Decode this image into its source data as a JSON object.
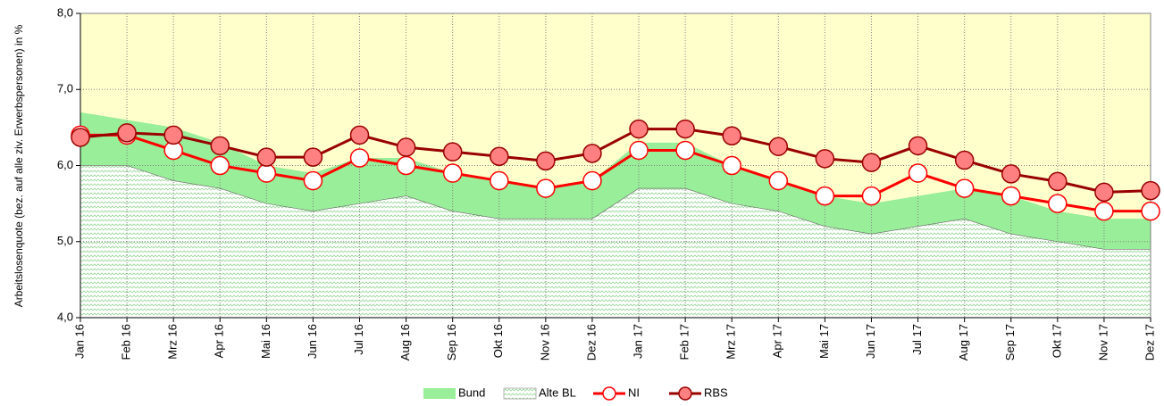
{
  "chart_data": {
    "type": "line",
    "y_label": "Arbeitslosenquote (bez. auf alle ziv. Erwerbspersonen) in %",
    "categories": [
      "Jan 16",
      "Feb 16",
      "Mrz 16",
      "Apr 16",
      "Mai 16",
      "Jun 16",
      "Jul 16",
      "Aug 16",
      "Sep 16",
      "Okt 16",
      "Nov 16",
      "Dez 16",
      "Jan 17",
      "Feb 17",
      "Mrz 17",
      "Apr 17",
      "Mai 17",
      "Jun 17",
      "Jul 17",
      "Aug 17",
      "Sep 17",
      "Okt 17",
      "Nov 17",
      "Dez 17"
    ],
    "ylim": [
      4.0,
      8.0
    ],
    "yticks": [
      {
        "value": 4.0,
        "label": "4,0"
      },
      {
        "value": 5.0,
        "label": "5,0"
      },
      {
        "value": 6.0,
        "label": "6,0"
      },
      {
        "value": 7.0,
        "label": "7,0"
      },
      {
        "value": 8.0,
        "label": "8,0"
      }
    ],
    "grid": true,
    "plot_background": "#ffffcc",
    "series": [
      {
        "name": "Bund",
        "style": "area",
        "color": "#99ee99",
        "values": [
          6.7,
          6.6,
          6.5,
          6.3,
          6.0,
          5.9,
          6.1,
          6.1,
          5.9,
          5.8,
          5.7,
          5.8,
          6.3,
          6.3,
          6.0,
          5.8,
          5.6,
          5.5,
          5.6,
          5.7,
          5.6,
          5.4,
          5.3,
          5.3
        ]
      },
      {
        "name": "Alte BL",
        "style": "pattern-area",
        "color": "#b8ecb8",
        "values": [
          6.0,
          6.0,
          5.8,
          5.7,
          5.5,
          5.4,
          5.5,
          5.6,
          5.4,
          5.3,
          5.3,
          5.3,
          5.7,
          5.7,
          5.5,
          5.4,
          5.2,
          5.1,
          5.2,
          5.3,
          5.1,
          5.0,
          4.9,
          4.9
        ]
      },
      {
        "name": "NI",
        "style": "line",
        "color": "#ff0000",
        "marker_fill": "#ffffff",
        "values": [
          6.4,
          6.4,
          6.2,
          6.0,
          5.9,
          5.8,
          6.1,
          6.0,
          5.9,
          5.8,
          5.7,
          5.8,
          6.2,
          6.2,
          6.0,
          5.8,
          5.6,
          5.6,
          5.9,
          5.7,
          5.6,
          5.5,
          5.4,
          5.4
        ]
      },
      {
        "name": "RBS",
        "style": "line",
        "color": "#990000",
        "marker_fill": "#ff8080",
        "values": [
          6.37,
          6.43,
          6.4,
          6.26,
          6.11,
          6.11,
          6.4,
          6.24,
          6.18,
          6.12,
          6.06,
          6.16,
          6.48,
          6.48,
          6.39,
          6.25,
          6.09,
          6.04,
          6.26,
          6.07,
          5.89,
          5.79,
          5.65,
          5.67
        ]
      }
    ]
  }
}
